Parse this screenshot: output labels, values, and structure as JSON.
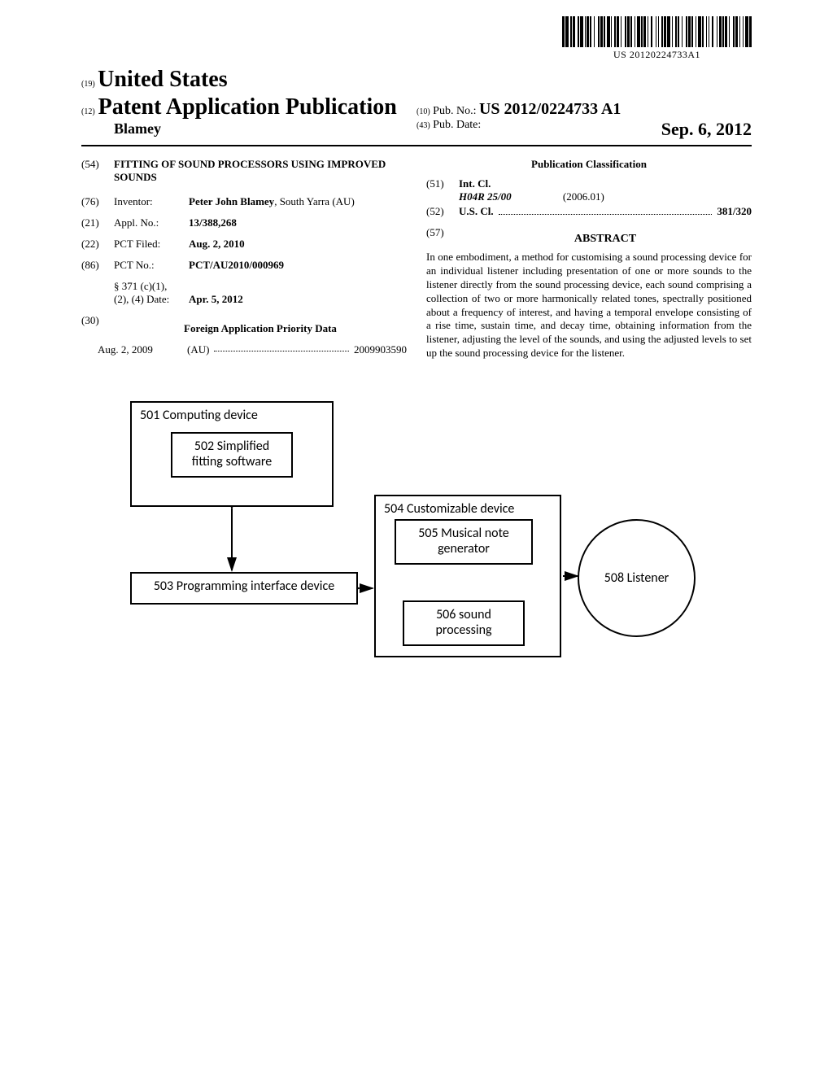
{
  "barcode_number": "US 20120224733A1",
  "header": {
    "code_19": "(19)",
    "country": "United States",
    "code_12": "(12)",
    "pub_type": "Patent Application Publication",
    "author": "Blamey",
    "code_10": "(10)",
    "pub_no_label": "Pub. No.:",
    "pub_no": "US 2012/0224733 A1",
    "code_43": "(43)",
    "pub_date_label": "Pub. Date:",
    "pub_date": "Sep. 6, 2012"
  },
  "left_col": {
    "title_code": "(54)",
    "title": "FITTING OF SOUND PROCESSORS USING IMPROVED SOUNDS",
    "inventor_code": "(76)",
    "inventor_label": "Inventor:",
    "inventor_name": "Peter John Blamey",
    "inventor_loc": ", South Yarra (AU)",
    "appl_code": "(21)",
    "appl_label": "Appl. No.:",
    "appl_no": "13/388,268",
    "pctfiled_code": "(22)",
    "pctfiled_label": "PCT Filed:",
    "pctfiled_val": "Aug. 2, 2010",
    "pctno_code": "(86)",
    "pctno_label": "PCT No.:",
    "pctno_val": "PCT/AU2010/000969",
    "s371_l1": "§ 371 (c)(1),",
    "s371_l2": "(2), (4) Date:",
    "s371_val": "Apr. 5, 2012",
    "priority_code": "(30)",
    "priority_heading": "Foreign Application Priority Data",
    "priority_date": "Aug. 2, 2009",
    "priority_cc": "(AU)",
    "priority_num": "2009903590"
  },
  "right_col": {
    "classification_heading": "Publication Classification",
    "intcl_code": "(51)",
    "intcl_label": "Int. Cl.",
    "intcl_sym": "H04R 25/00",
    "intcl_date": "(2006.01)",
    "uscl_code": "(52)",
    "uscl_label": "U.S. Cl.",
    "uscl_val": "381/320",
    "abstract_code": "(57)",
    "abstract_heading": "ABSTRACT",
    "abstract_text": "In one embodiment, a method for customising a sound processing device for an individual listener including presentation of one or more sounds to the listener directly from the sound processing device, each sound comprising a collection of two or more harmonically related tones, spectrally positioned about a frequency of interest, and having a temporal envelope consisting of a rise time, sustain time, and decay time, obtaining information from the listener, adjusting the level of the sounds, and using the adjusted levels to set up the sound processing device for the listener."
  },
  "diagram": {
    "b501": "501 Computing device",
    "b502": "502 Simplified fitting software",
    "b503": "503 Programming interface device",
    "b504": "504 Customizable device",
    "b505": "505 Musical note generator",
    "b506": "506 sound processing",
    "b508": "508 Listener"
  },
  "barcode_widths": [
    3,
    1,
    4,
    2,
    2,
    1,
    3,
    3,
    2,
    1,
    4,
    2,
    1,
    1,
    3,
    1,
    2,
    3,
    1,
    4,
    2,
    1,
    3,
    1,
    2,
    2,
    4,
    1,
    1,
    3,
    2,
    1,
    3,
    2,
    1,
    4,
    2,
    1,
    3,
    1,
    2,
    3,
    1,
    2,
    4,
    1,
    2,
    1,
    3,
    2,
    1,
    3,
    2,
    4,
    1,
    2,
    1,
    3,
    2,
    1,
    3,
    1,
    4,
    2,
    1,
    3,
    2,
    1,
    2,
    3,
    1,
    4,
    2,
    1,
    3,
    1,
    2,
    3,
    1,
    2,
    4,
    1,
    2,
    3,
    1,
    2,
    1,
    3,
    2,
    4,
    1,
    2,
    3,
    1,
    2,
    1,
    3,
    2,
    1,
    4,
    2,
    1,
    3,
    2,
    1,
    3,
    1,
    2,
    4,
    1,
    3
  ]
}
